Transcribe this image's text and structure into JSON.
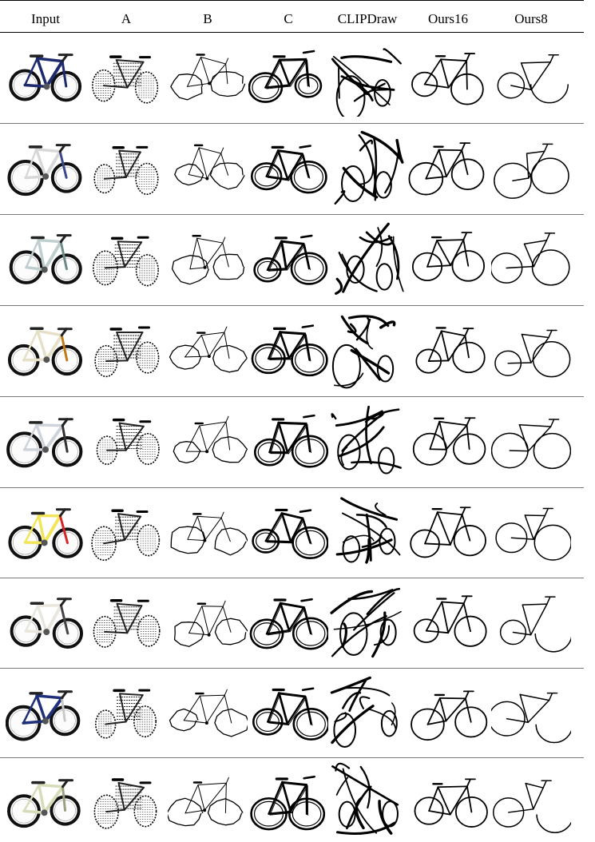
{
  "header": {
    "columns": [
      "Input",
      "A",
      "B",
      "C",
      "CLIPDraw",
      "Ours16",
      "Ours8"
    ]
  },
  "rows": [
    {
      "id": 1,
      "input_frame_color": "#1e2a6e",
      "input_accent": "#1e2a6e"
    },
    {
      "id": 2,
      "input_frame_color": "#d8d8d8",
      "input_accent": "#3a4a8a"
    },
    {
      "id": 3,
      "input_frame_color": "#bfcfd0",
      "input_accent": "#6d8a86"
    },
    {
      "id": 4,
      "input_frame_color": "#e6e0c8",
      "input_accent": "#c27a1a"
    },
    {
      "id": 5,
      "input_frame_color": "#cfd4dc",
      "input_accent": "#333333"
    },
    {
      "id": 6,
      "input_frame_color": "#f2e55a",
      "input_accent": "#d7262a"
    },
    {
      "id": 7,
      "input_frame_color": "#e9e6dd",
      "input_accent": "#444444"
    },
    {
      "id": 8,
      "input_frame_color": "#1f2f7a",
      "input_accent": "#c9c9c9"
    },
    {
      "id": 9,
      "input_frame_color": "#d7dcb8",
      "input_accent": "#9aa080"
    }
  ]
}
